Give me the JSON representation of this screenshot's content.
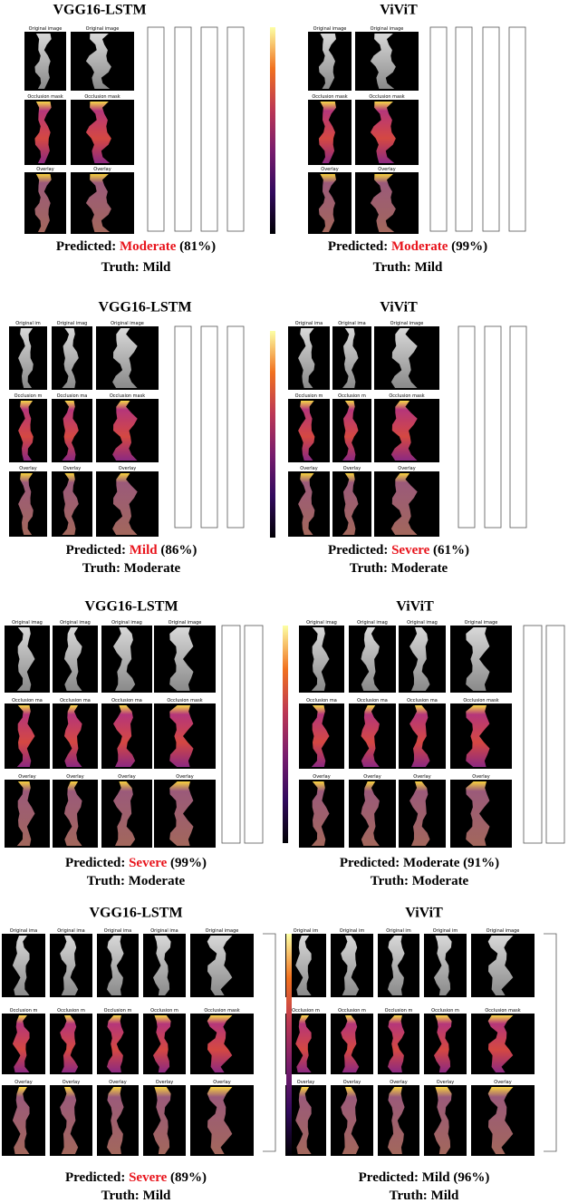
{
  "rows": [
    {
      "panels": [
        {
          "title": "VGG16-LSTM",
          "frame_labels": [
            [
              "Original image",
              "Original image"
            ],
            [
              "Occlusion mask",
              "Occlusion mask"
            ],
            [
              "Overlay",
              "Overlay"
            ]
          ],
          "predicted_prefix": "Predicted:",
          "prediction": "Moderate",
          "prediction_color": "#e8141c",
          "confidence": "(81%)",
          "truth_prefix": "Truth:",
          "truth": "Mild"
        },
        {
          "title": "ViViT",
          "frame_labels": [
            [
              "Original image",
              "Original image"
            ],
            [
              "Occlusion mask",
              "Occlusion mask"
            ],
            [
              "Overlay",
              "Overlay"
            ]
          ],
          "predicted_prefix": "Predicted:",
          "prediction": "Moderate",
          "prediction_color": "#e8141c",
          "confidence": "(99%)",
          "truth_prefix": "Truth:",
          "truth": "Mild"
        }
      ]
    },
    {
      "panels": [
        {
          "title": "VGG16-LSTM",
          "frame_labels": [
            [
              "Original im",
              "Original imag",
              "Original image"
            ],
            [
              "Occlusion m",
              "Occlusion ma",
              "Occlusion mask"
            ],
            [
              "Overlay",
              "Overlay",
              "Overlay"
            ]
          ],
          "predicted_prefix": "Predicted:",
          "prediction": "Mild",
          "prediction_color": "#e8141c",
          "confidence": "(86%)",
          "truth_prefix": "Truth:",
          "truth": "Moderate"
        },
        {
          "title": "ViViT",
          "frame_labels": [
            [
              "Original ima",
              "Original ima",
              "Original image"
            ],
            [
              "Occlusion m",
              "Occlusion m",
              "Occlusion mask"
            ],
            [
              "Overlay",
              "Overlay",
              "Overlay"
            ]
          ],
          "predicted_prefix": "Predicted:",
          "prediction": "Severe",
          "prediction_color": "#e8141c",
          "confidence": "(61%)",
          "truth_prefix": "Truth:",
          "truth": "Moderate"
        }
      ]
    },
    {
      "panels": [
        {
          "title": "VGG16-LSTM",
          "frame_labels": [
            [
              "Original imag",
              "Original imag",
              "Original imag",
              "Original image"
            ],
            [
              "Occlusion ma",
              "Occlusion ma",
              "Occlusion ma",
              "Occlusion mask"
            ],
            [
              "Overlay",
              "Overlay",
              "Overlay",
              "Overlay"
            ]
          ],
          "predicted_prefix": "Predicted:",
          "prediction": "Severe",
          "prediction_color": "#e8141c",
          "confidence": "(99%)",
          "truth_prefix": "Truth:",
          "truth": "Moderate"
        },
        {
          "title": "ViViT",
          "frame_labels": [
            [
              "Original imag",
              "Original imag",
              "Original imag",
              "Original image"
            ],
            [
              "Occlusion ma",
              "Occlusion ma",
              "Occlusion ma",
              "Occlusion mask"
            ],
            [
              "Overlay",
              "Overlay",
              "Overlay",
              "Overlay"
            ]
          ],
          "predicted_prefix": "Predicted:",
          "prediction": "Moderate",
          "prediction_color": "#000000",
          "confidence": "(91%)",
          "truth_prefix": "Truth:",
          "truth": "Moderate"
        }
      ]
    },
    {
      "panels": [
        {
          "title": "VGG16-LSTM",
          "frame_labels": [
            [
              "Original ima",
              "Original ima",
              "Original ima",
              "Original ima",
              "Original image"
            ],
            [
              "Occlusion m",
              "Occlusion m",
              "Occlusion m",
              "Occlusion m",
              "Occlusion mask"
            ],
            [
              "Overlay",
              "Overlay",
              "Overlay",
              "Overlay",
              "Overlay"
            ]
          ],
          "predicted_prefix": "Predicted:",
          "prediction": "Severe",
          "prediction_color": "#e8141c",
          "confidence": "(89%)",
          "truth_prefix": "Truth:",
          "truth": "Mild"
        },
        {
          "title": "ViViT",
          "frame_labels": [
            [
              "Original im",
              "Original im",
              "Original im",
              "Original im",
              "Original image"
            ],
            [
              "Occlusion m",
              "Occlusion m",
              "Occlusion m",
              "Occlusion m",
              "Occlusion mask"
            ],
            [
              "Overlay",
              "Overlay",
              "Overlay",
              "Overlay",
              "Overlay"
            ]
          ],
          "predicted_prefix": "Predicted:",
          "prediction": "Mild",
          "prediction_color": "#000000",
          "confidence": "(96%)",
          "truth_prefix": "Truth:",
          "truth": "Mild"
        }
      ]
    }
  ]
}
